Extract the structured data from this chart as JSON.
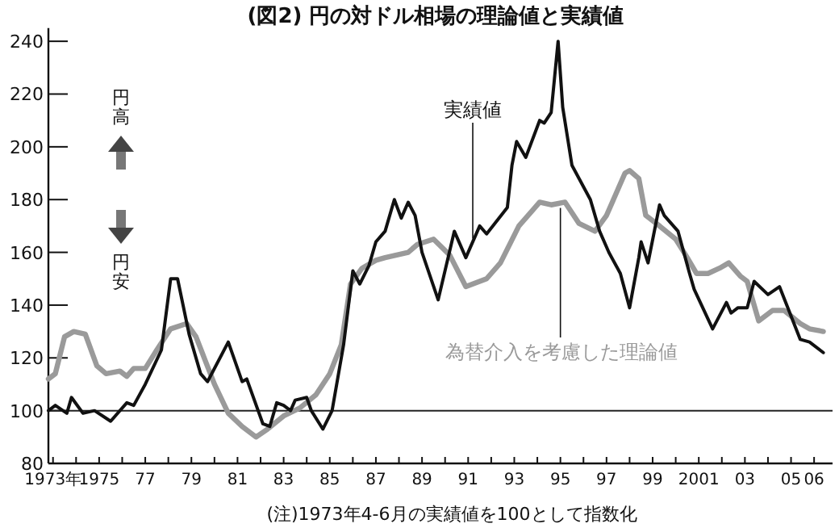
{
  "chart_data": {
    "type": "line",
    "title": "(図2) 円の対ドル相場の理論値と実績値",
    "xlim": [
      1972.8,
      2006.8
    ],
    "xticks": [
      {
        "value": 1973,
        "label": "1973年"
      },
      {
        "value": 1974,
        "label": null
      },
      1975,
      {
        "value": 1976,
        "label": null
      },
      {
        "value": 1977,
        "label": "77"
      },
      {
        "value": 1978,
        "label": null
      },
      {
        "value": 1979,
        "label": "79"
      },
      {
        "value": 1980,
        "label": null
      },
      {
        "value": 1981,
        "label": "81"
      },
      {
        "value": 1982,
        "label": null
      },
      {
        "value": 1983,
        "label": "83"
      },
      {
        "value": 1984,
        "label": null
      },
      {
        "value": 1985,
        "label": "85"
      },
      {
        "value": 1986,
        "label": null
      },
      {
        "value": 1987,
        "label": "87"
      },
      {
        "value": 1988,
        "label": null
      },
      {
        "value": 1989,
        "label": "89"
      },
      {
        "value": 1990,
        "label": null
      },
      {
        "value": 1991,
        "label": "91"
      },
      {
        "value": 1992,
        "label": null
      },
      {
        "value": 1993,
        "label": "93"
      },
      {
        "value": 1994,
        "label": null
      },
      {
        "value": 1995,
        "label": "95"
      },
      {
        "value": 1996,
        "label": null
      },
      {
        "value": 1997,
        "label": "97"
      },
      {
        "value": 1998,
        "label": null
      },
      {
        "value": 1999,
        "label": "99"
      },
      {
        "value": 2000,
        "label": null
      },
      2001,
      {
        "value": 2002,
        "label": null
      },
      {
        "value": 2003,
        "label": "03"
      },
      {
        "value": 2004,
        "label": null
      },
      {
        "value": 2005,
        "label": "05"
      },
      {
        "value": 2006,
        "label": "06"
      }
    ],
    "ylim": [
      80,
      245
    ],
    "yticks": [
      80,
      100,
      120,
      140,
      160,
      180,
      200,
      220,
      240
    ],
    "grid": false,
    "marker": "none",
    "line_style": "solid",
    "ref_lines": [
      {
        "axis": "y",
        "value": 100,
        "color": "#222222"
      }
    ],
    "annotations": [
      "円高",
      "円安",
      "(注)1973年4-6月の実績値を100として指数化"
    ],
    "series": [
      {
        "name": "実績値",
        "color": "#111111",
        "x": [
          1972.8,
          1973.1,
          1973.6,
          1973.8,
          1974.3,
          1974.8,
          1975.5,
          1976.2,
          1976.5,
          1977.0,
          1977.7,
          1978.1,
          1978.4,
          1978.9,
          1979.4,
          1979.7,
          1980.6,
          1981.2,
          1981.4,
          1982.1,
          1982.4,
          1982.7,
          1983.0,
          1983.3,
          1983.5,
          1984.0,
          1984.2,
          1984.7,
          1985.1,
          1985.6,
          1986.0,
          1986.3,
          1986.7,
          1987.0,
          1987.4,
          1987.8,
          1988.1,
          1988.4,
          1988.7,
          1989.0,
          1989.7,
          1990.4,
          1990.9,
          1991.5,
          1991.8,
          1992.7,
          1992.9,
          1993.1,
          1993.5,
          1994.1,
          1994.3,
          1994.6,
          1994.9,
          1995.1,
          1995.5,
          1996.3,
          1996.7,
          1997.1,
          1997.6,
          1998.0,
          1998.4,
          1998.5,
          1998.8,
          1999.3,
          1999.5,
          2000.1,
          2000.6,
          2000.8,
          2001.6,
          2002.2,
          2002.4,
          2002.7,
          2003.1,
          2003.4,
          2004.0,
          2004.5,
          2005.4,
          2005.8,
          2006.4
        ],
        "values": [
          100,
          102,
          99,
          105,
          99,
          100,
          96,
          103,
          102,
          110,
          123,
          150,
          150,
          129,
          114,
          111,
          126,
          111,
          112,
          95,
          94,
          103,
          102,
          100,
          104,
          105,
          100,
          93,
          100,
          125,
          153,
          148,
          155,
          164,
          168,
          180,
          173,
          179,
          174,
          160,
          142,
          168,
          158,
          170,
          167,
          177,
          193,
          202,
          196,
          210,
          209,
          213,
          240,
          215,
          193,
          180,
          168,
          160,
          152,
          139,
          158,
          164,
          156,
          178,
          174,
          168,
          152,
          146,
          131,
          141,
          137,
          139,
          139,
          149,
          144,
          147,
          127,
          126,
          122
        ]
      },
      {
        "name": "為替介入を考慮した理論値",
        "color": "#9a9a9a",
        "x": [
          1972.8,
          1973.1,
          1973.5,
          1973.9,
          1974.4,
          1974.9,
          1975.3,
          1975.9,
          1976.2,
          1976.5,
          1977.0,
          1977.5,
          1978.1,
          1978.8,
          1979.2,
          1979.6,
          1980.0,
          1980.6,
          1981.2,
          1981.8,
          1982.3,
          1983.0,
          1983.7,
          1984.4,
          1985.0,
          1985.5,
          1985.9,
          1986.4,
          1987.0,
          1987.4,
          1988.4,
          1988.8,
          1989.5,
          1990.2,
          1990.9,
          1991.8,
          1992.4,
          1993.2,
          1994.1,
          1994.6,
          1995.2,
          1995.8,
          1996.5,
          1997.0,
          1997.8,
          1998.0,
          1998.4,
          1998.7,
          1999.3,
          2000.0,
          2000.5,
          2000.9,
          2001.4,
          2001.9,
          2002.3,
          2002.8,
          2003.1,
          2003.6,
          2004.2,
          2004.7,
          2005.4,
          2005.8,
          2006.4
        ],
        "values": [
          112,
          114,
          128,
          130,
          129,
          117,
          114,
          115,
          113,
          116,
          116,
          123,
          131,
          133,
          128,
          119,
          110,
          99,
          94,
          90,
          93,
          98,
          101,
          106,
          114,
          125,
          148,
          154,
          157,
          158,
          160,
          163,
          165,
          159,
          147,
          150,
          156,
          170,
          179,
          178,
          179,
          171,
          168,
          174,
          190,
          191,
          188,
          174,
          170,
          165,
          158,
          152,
          152,
          154,
          156,
          151,
          149,
          134,
          138,
          138,
          133,
          131,
          130
        ]
      }
    ]
  }
}
